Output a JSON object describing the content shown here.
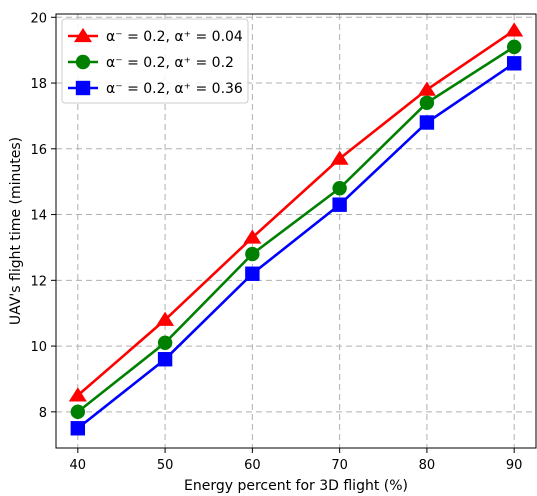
{
  "chart_data": {
    "type": "line",
    "xlabel": "Energy percent for 3D flight (%)",
    "ylabel": "UAV's flight time (minutes)",
    "xlim": [
      37.5,
      92.5
    ],
    "ylim": [
      6.9,
      20.1
    ],
    "xticks": [
      40,
      50,
      60,
      70,
      80,
      90
    ],
    "yticks": [
      8,
      10,
      12,
      14,
      16,
      18,
      20
    ],
    "grid": true,
    "legend_position": "top-left",
    "x": [
      40,
      50,
      60,
      70,
      80,
      90
    ],
    "series": [
      {
        "name": "α⁻ = 0.2, α⁺ = 0.04",
        "color": "#ff0000",
        "marker": "triangle",
        "values": [
          8.5,
          10.8,
          13.3,
          15.7,
          17.8,
          19.6
        ]
      },
      {
        "name": "α⁻ = 0.2, α⁺ = 0.2",
        "color": "#008000",
        "marker": "circle",
        "values": [
          8.0,
          10.1,
          12.8,
          14.8,
          17.4,
          19.1
        ]
      },
      {
        "name": "α⁻ = 0.2, α⁺ = 0.36",
        "color": "#0000ff",
        "marker": "square",
        "values": [
          7.5,
          9.6,
          12.2,
          14.3,
          16.8,
          18.6
        ]
      }
    ]
  }
}
